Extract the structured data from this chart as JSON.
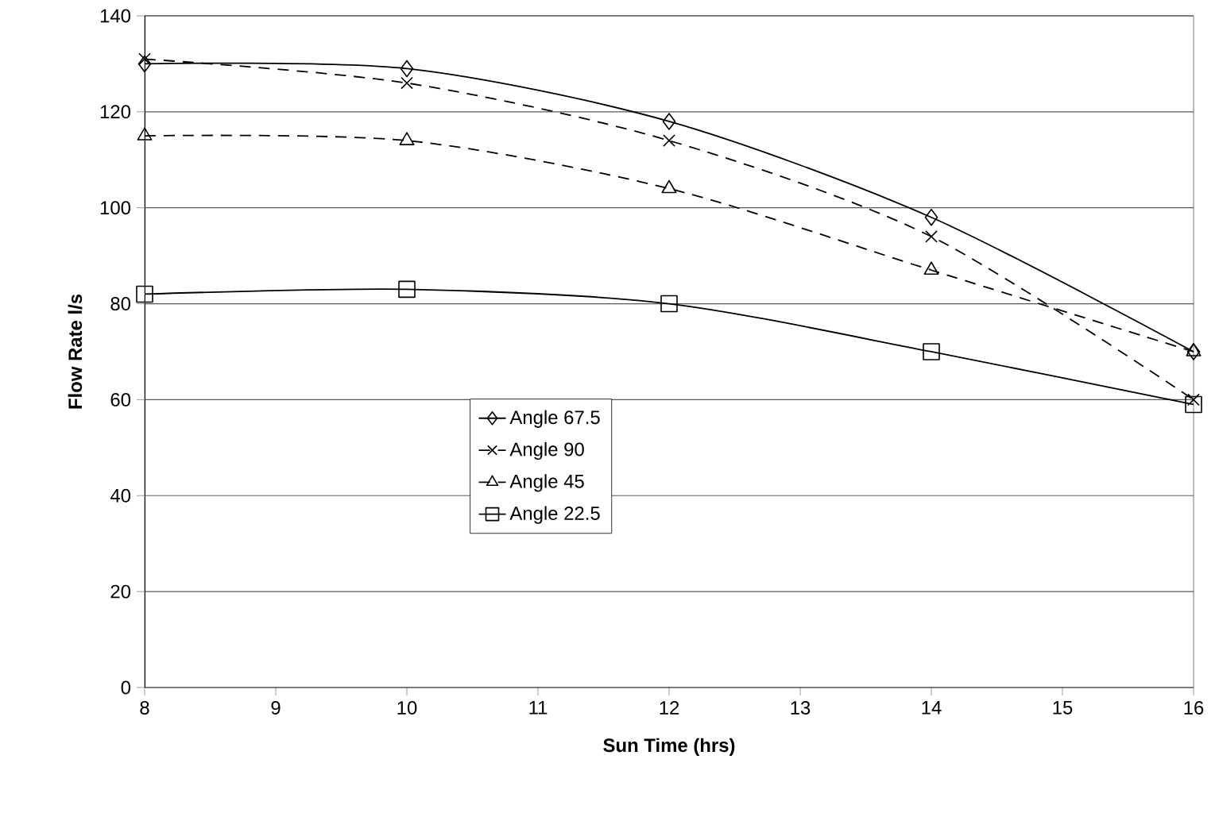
{
  "chart_data": {
    "type": "line",
    "xlabel": "Sun Time (hrs)",
    "ylabel": "Flow Rate l/s",
    "x": [
      8,
      10,
      12,
      14,
      16
    ],
    "xlim": [
      8,
      16
    ],
    "xticks": [
      8,
      9,
      10,
      11,
      12,
      13,
      14,
      15,
      16
    ],
    "ylim": [
      0,
      140
    ],
    "yticks": [
      0,
      20,
      40,
      60,
      80,
      100,
      120,
      140
    ],
    "grid": "y",
    "legend": "center",
    "series": [
      {
        "name": "Angle 67.5",
        "color": "#000000",
        "marker": "diamond",
        "line_style": "solid",
        "values": [
          130,
          129,
          118,
          98,
          70
        ]
      },
      {
        "name": "Angle 90",
        "color": "#000000",
        "marker": "cross",
        "line_style": "dashed",
        "values": [
          131,
          126,
          114,
          94,
          60
        ]
      },
      {
        "name": "Angle 45",
        "color": "#000000",
        "marker": "triangle",
        "line_style": "dashed",
        "values": [
          115,
          114,
          104,
          87,
          70
        ]
      },
      {
        "name": "Angle 22.5",
        "color": "#000000",
        "marker": "square",
        "line_style": "solid",
        "values": [
          82,
          83,
          80,
          70,
          59
        ]
      }
    ]
  }
}
